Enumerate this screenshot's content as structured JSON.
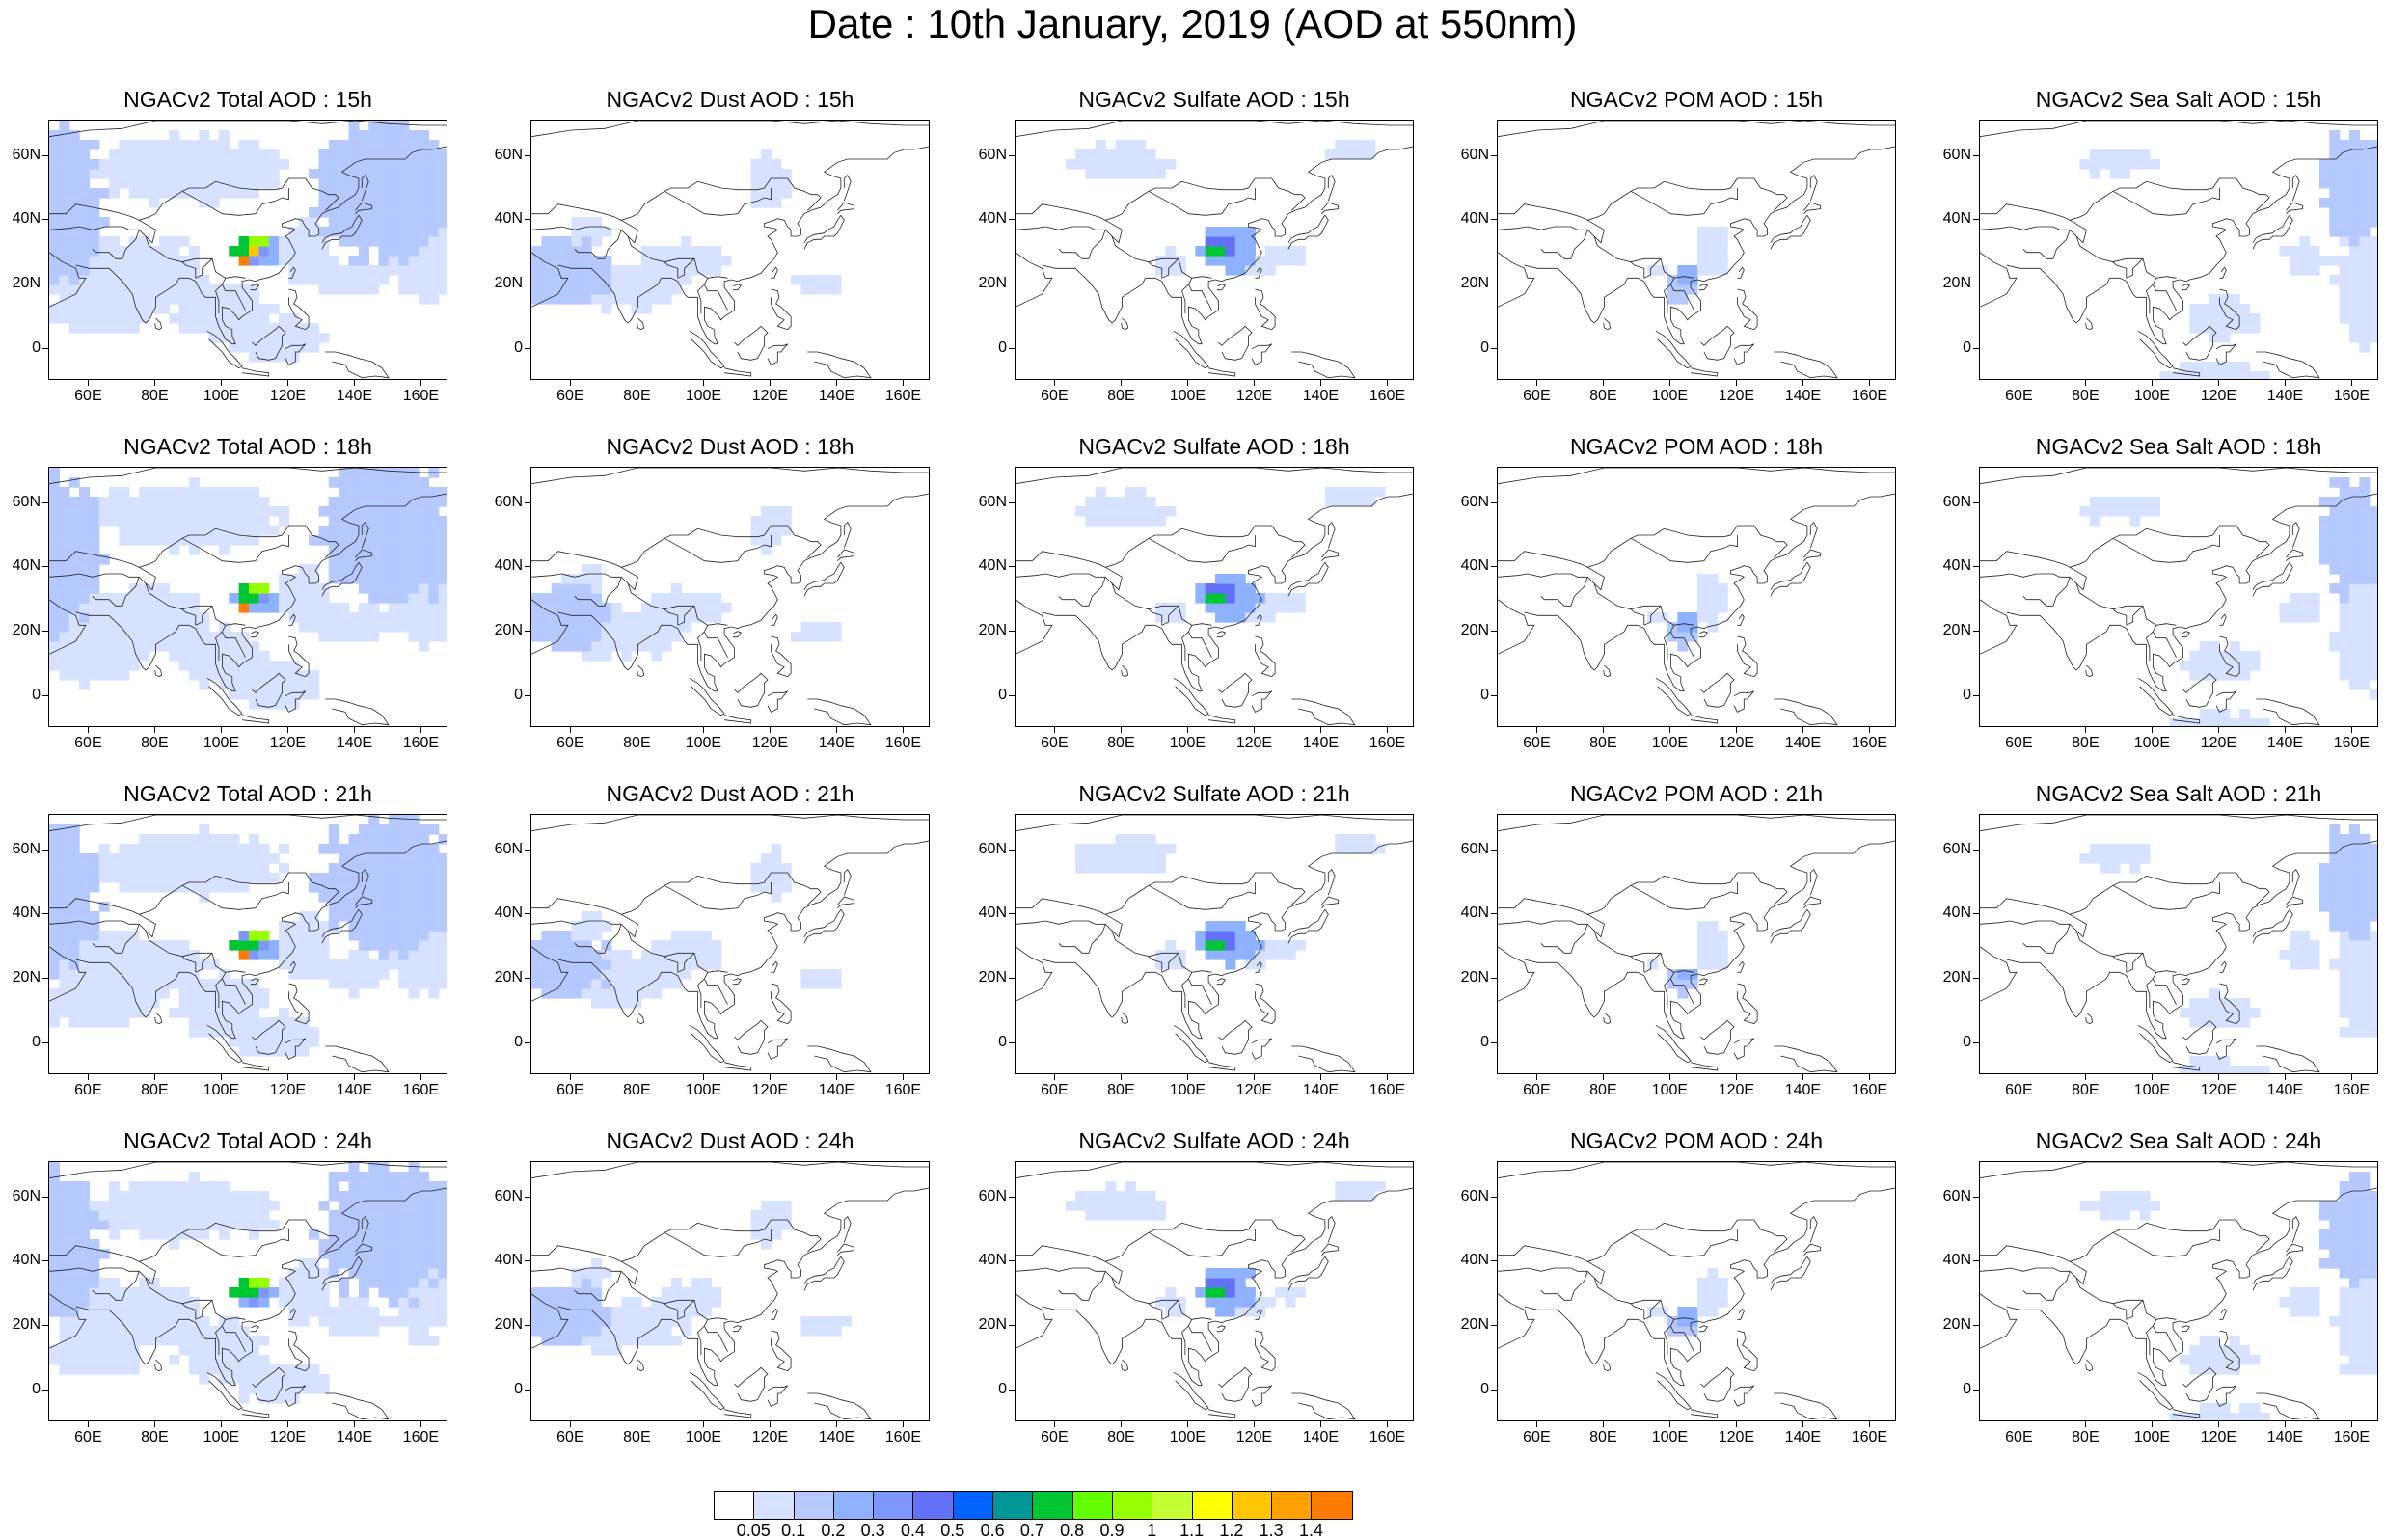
{
  "title": "Date : 10th January, 2019 (AOD at 550nm)",
  "lat_ticks": [
    "60N",
    "40N",
    "20N",
    "0"
  ],
  "lon_ticks": [
    "60E",
    "80E",
    "100E",
    "120E",
    "140E",
    "160E"
  ],
  "panels": [
    [
      {
        "title": "NGACv2 Total AOD : 15h",
        "species": "total"
      },
      {
        "title": "NGACv2 Dust AOD : 15h",
        "species": "dust"
      },
      {
        "title": "NGACv2 Sulfate AOD : 15h",
        "species": "sulfate"
      },
      {
        "title": "NGACv2 POM AOD : 15h",
        "species": "pom"
      },
      {
        "title": "NGACv2 Sea Salt AOD : 15h",
        "species": "seasalt"
      }
    ],
    [
      {
        "title": "NGACv2 Total AOD : 18h",
        "species": "total"
      },
      {
        "title": "NGACv2 Dust AOD : 18h",
        "species": "dust"
      },
      {
        "title": "NGACv2 Sulfate AOD : 18h",
        "species": "sulfate"
      },
      {
        "title": "NGACv2 POM AOD : 18h",
        "species": "pom"
      },
      {
        "title": "NGACv2 Sea Salt AOD : 18h",
        "species": "seasalt"
      }
    ],
    [
      {
        "title": "NGACv2 Total AOD : 21h",
        "species": "total"
      },
      {
        "title": "NGACv2 Dust AOD : 21h",
        "species": "dust"
      },
      {
        "title": "NGACv2 Sulfate AOD : 21h",
        "species": "sulfate"
      },
      {
        "title": "NGACv2 POM AOD : 21h",
        "species": "pom"
      },
      {
        "title": "NGACv2 Sea Salt AOD : 21h",
        "species": "seasalt"
      }
    ],
    [
      {
        "title": "NGACv2 Total AOD : 24h",
        "species": "total"
      },
      {
        "title": "NGACv2 Dust AOD : 24h",
        "species": "dust"
      },
      {
        "title": "NGACv2 Sulfate AOD : 24h",
        "species": "sulfate"
      },
      {
        "title": "NGACv2 POM AOD : 24h",
        "species": "pom"
      },
      {
        "title": "NGACv2 Sea Salt  AOD : 24h",
        "species": "seasalt"
      }
    ]
  ],
  "colorbar": {
    "labels": [
      "0.05",
      "0.1",
      "0.2",
      "0.3",
      "0.4",
      "0.5",
      "0.6",
      "0.7",
      "0.8",
      "0.9",
      "1",
      "1.1",
      "1.2",
      "1.3",
      "1.4"
    ],
    "colors": [
      "#ffffff",
      "#d6e2ff",
      "#b5c9ff",
      "#8eb2ff",
      "#7f96ff",
      "#6370f8",
      "#0063ff",
      "#009696",
      "#00c633",
      "#63ff00",
      "#96ff00",
      "#c6ff33",
      "#ffff00",
      "#ffc600",
      "#ffa000",
      "#ff7c00",
      "#ff1900"
    ]
  }
}
